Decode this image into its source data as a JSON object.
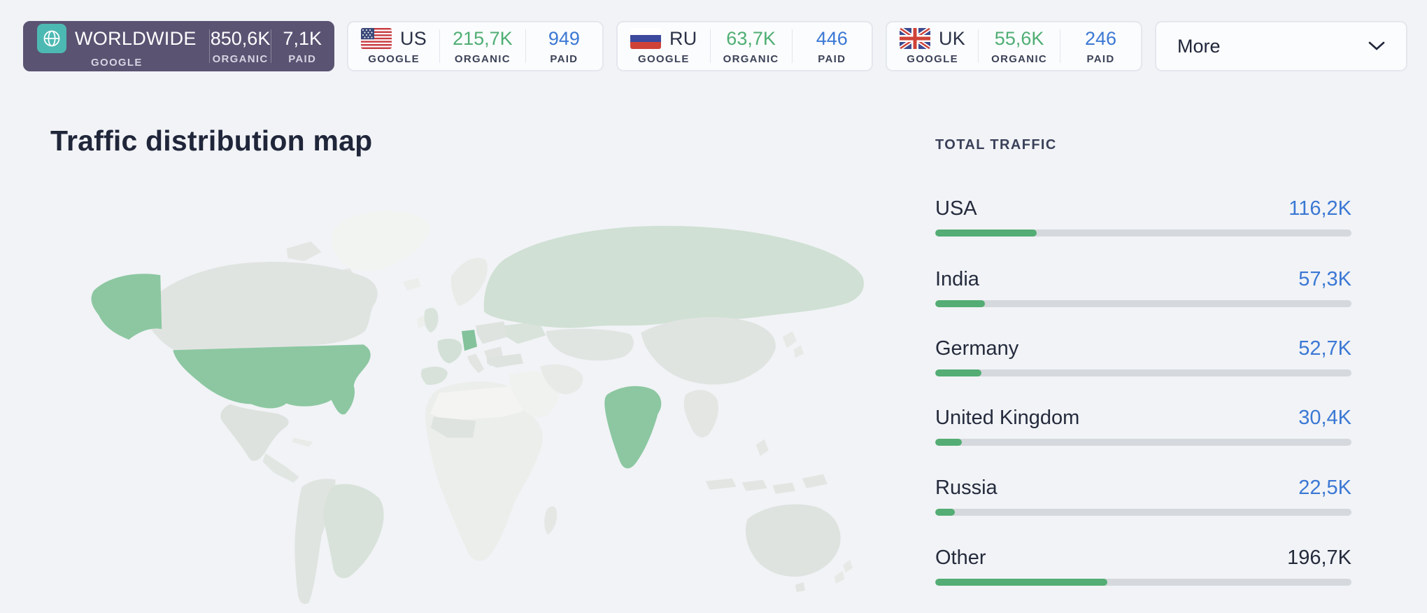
{
  "colors": {
    "page_bg": "#f1f3f6",
    "accent_green": "#54ad74",
    "link_blue": "#3b78d4",
    "selected_tab_purple": "#5a5372",
    "globe_chip_teal": "#4db9b3",
    "map_highlight_green": "#8cc7a1",
    "map_light_green": "#d2e1d6",
    "map_default_gray": "#e2e5e2",
    "bar_track_gray": "#d5d8dd"
  },
  "header": {
    "worldwide_tab": {
      "label": "WORLDWIDE",
      "engine": "GOOGLE",
      "organic_value": "850,6K",
      "organic_label": "ORGANIC",
      "paid_value": "7,1K",
      "paid_label": "PAID"
    },
    "country_tabs": [
      {
        "code": "US",
        "engine": "GOOGLE",
        "organic_value": "215,7K",
        "organic_label": "ORGANIC",
        "paid_value": "949",
        "paid_label": "PAID",
        "flag": "us-flag"
      },
      {
        "code": "RU",
        "engine": "GOOGLE",
        "organic_value": "63,7K",
        "organic_label": "ORGANIC",
        "paid_value": "446",
        "paid_label": "PAID",
        "flag": "ru-flag"
      },
      {
        "code": "UK",
        "engine": "GOOGLE",
        "organic_value": "55,6K",
        "organic_label": "ORGANIC",
        "paid_value": "246",
        "paid_label": "PAID",
        "flag": "uk-flag"
      }
    ],
    "more_label": "More"
  },
  "main": {
    "title": "Traffic distribution map"
  },
  "traffic_panel": {
    "title": "TOTAL TRAFFIC",
    "items": [
      {
        "country": "USA",
        "value": "116,2K",
        "share_pct": 24.4,
        "is_link": true
      },
      {
        "country": "India",
        "value": "57,3K",
        "share_pct": 12.0,
        "is_link": true
      },
      {
        "country": "Germany",
        "value": "52,7K",
        "share_pct": 11.1,
        "is_link": true
      },
      {
        "country": "United Kingdom",
        "value": "30,4K",
        "share_pct": 6.4,
        "is_link": true
      },
      {
        "country": "Russia",
        "value": "22,5K",
        "share_pct": 4.7,
        "is_link": true
      },
      {
        "country": "Other",
        "value": "196,7K",
        "share_pct": 41.3,
        "is_link": false
      }
    ]
  },
  "chart_data": {
    "type": "bar",
    "title": "TOTAL TRAFFIC",
    "categories": [
      "USA",
      "India",
      "Germany",
      "United Kingdom",
      "Russia",
      "Other"
    ],
    "values_thousands": [
      116.2,
      57.3,
      52.7,
      30.4,
      22.5,
      196.7
    ],
    "value_labels": [
      "116,2K",
      "57,3K",
      "52,7K",
      "30,4K",
      "22,5K",
      "196,7K"
    ],
    "bar_color": "#54ad74",
    "legend_position": "none",
    "grid": false,
    "map": {
      "type": "choropleth",
      "strong_highlight_countries": [
        "United States",
        "India",
        "Germany"
      ],
      "light_highlight_countries": [
        "Russia",
        "France",
        "Spain",
        "Ukraine",
        "Brazil",
        "Scandinavia",
        "United Kingdom"
      ],
      "default_fill": "gray shades"
    }
  }
}
